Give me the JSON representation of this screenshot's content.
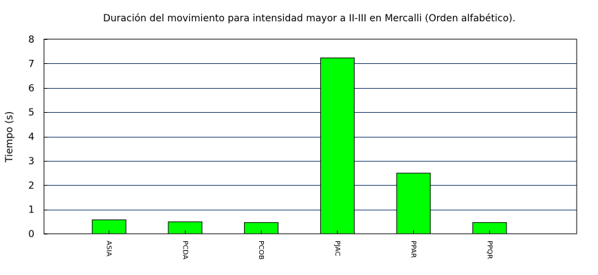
{
  "chart_data": {
    "type": "bar",
    "title": "Duración del movimiento para intensidad mayor a II-III en Mercalli (Orden alfabético).",
    "xlabel": "",
    "ylabel": "Tiempo (s)",
    "ylim": [
      0,
      8
    ],
    "yticks": [
      0,
      1,
      2,
      3,
      4,
      5,
      6,
      7,
      8
    ],
    "categories": [
      "ASIA",
      "PCDA",
      "PCOB",
      "PJAC",
      "PPAR",
      "PPQR"
    ],
    "values": [
      0.57,
      0.49,
      0.46,
      7.23,
      2.49,
      0.46
    ],
    "bar_color": "#00ff00",
    "bar_edge_color": "#000000",
    "grid": true,
    "grid_axis": "y",
    "grid_color": "#1a3a6e",
    "legend": false
  }
}
